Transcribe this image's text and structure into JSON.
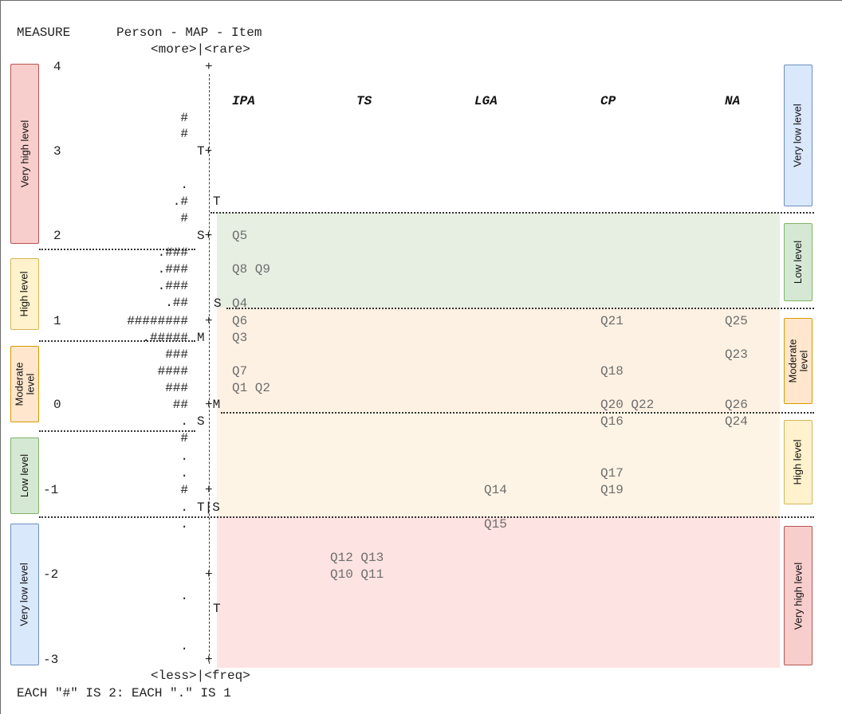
{
  "header": {
    "measure": "MEASURE",
    "title": "Person - MAP - Item",
    "top_labels": "<more>|<rare>",
    "bottom_labels": "<less>|<freq>",
    "footnote": "EACH \"#\" IS 2: EACH \".\" IS 1"
  },
  "scale": {
    "ticks": [
      "4",
      "3",
      "2",
      "1",
      "0",
      "-1",
      "-2",
      "-3"
    ]
  },
  "columns": {
    "ipa": "IPA",
    "ts": "TS",
    "lga": "LGA",
    "cp": "CP",
    "na": "NA"
  },
  "persons": {
    "r1": "#",
    "r2": "#",
    "r3": ".",
    "r4": ".#",
    "r5": "#",
    "r6": ".###",
    "r7": ".###",
    "r8": ".###",
    "r9": ".##",
    "r10": "########",
    ".r11": "",
    "r11": ".#####",
    "r12": "###",
    "r13": "####",
    "r14": "###",
    "r15": "##",
    "r16": ".",
    "r17": "#",
    "r18": ".",
    "r19": ".",
    "r20": "#",
    "r21": ".",
    "r22": ".",
    "r23": ".",
    "r24": "."
  },
  "axis_marks": {
    "plus4": "+",
    "t_plus": "T+",
    "t_right": "T",
    "s_plus": "S+",
    "s_right": "S",
    "plus1": "+",
    "m_mid": "M",
    "plus_m": "+M",
    "s_left": "S",
    "plus_1": "+",
    "t_pipe_s": "T|S",
    "plus_2": "+",
    "t_low": "T",
    "plus_3": "+"
  },
  "items": {
    "q5": "Q5",
    "q8q9": "Q8 Q9",
    "q4": "Q4",
    "q6": "Q6",
    "q3": "Q3",
    "q7": "Q7",
    "q1q2": "Q1 Q2",
    "q21": "Q21",
    "q25": "Q25",
    "q23": "Q23",
    "q18": "Q18",
    "q20q22": "Q20 Q22",
    "q26": "Q26",
    "q16": "Q16",
    "q24": "Q24",
    "q17": "Q17",
    "q14": "Q14",
    "q19": "Q19",
    "q15": "Q15",
    "q12q13": "Q12 Q13",
    "q10q11": "Q10 Q11"
  },
  "left_levels": {
    "very_high": "Very high level",
    "high": "High level",
    "moderate": "Moderate level",
    "low": "Low level",
    "very_low": "Very low level"
  },
  "right_levels": {
    "very_low": "Very low level",
    "low": "Low level",
    "moderate": "Moderate level",
    "high": "High level",
    "very_high": "Very high level"
  },
  "colors": {
    "green_band": "#e7efe3",
    "orange_band": "#fdf1e3",
    "red_band": "#fde3e1",
    "red_box_fill": "#f8cecc",
    "red_box_border": "#b85450",
    "blue_box_fill": "#dae8fc",
    "blue_box_border": "#6c8ebf",
    "green_box_fill": "#d5e8d4",
    "green_box_border": "#82b366",
    "yellow_box_fill": "#fff2cc",
    "yellow_box_border": "#d6b656",
    "orange_box_fill": "#ffe6cc",
    "orange_box_border": "#d79b00"
  }
}
